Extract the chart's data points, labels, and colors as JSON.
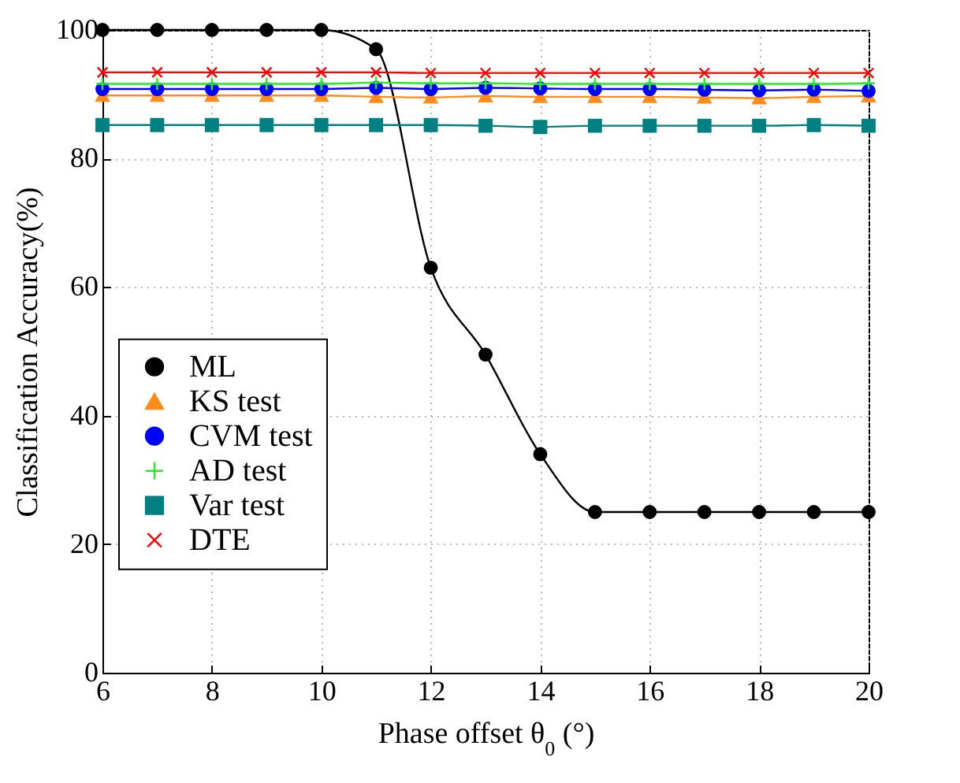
{
  "chart_data": {
    "type": "line",
    "xlabel": "Phase offset θ$_{0}$ (°)",
    "ylabel": "Classification Accuracy(%)",
    "x": [
      6,
      7,
      8,
      9,
      10,
      11,
      12,
      13,
      14,
      15,
      16,
      17,
      18,
      19,
      20
    ],
    "xlim": [
      6,
      20
    ],
    "xticks": [
      6,
      8,
      10,
      12,
      14,
      16,
      18,
      20
    ],
    "ylim": [
      0,
      100
    ],
    "yticks": [
      0,
      20,
      40,
      60,
      80,
      100
    ],
    "grid": true,
    "legend": "left",
    "series": [
      {
        "name": "ML",
        "color": "#000000",
        "marker": "circle",
        "values": [
          100,
          100,
          100,
          100,
          100,
          97,
          63,
          49.5,
          34,
          25,
          25,
          25,
          25,
          25,
          25
        ]
      },
      {
        "name": "KS test",
        "color": "#ff8c1a",
        "marker": "triangle",
        "values": [
          89.8,
          89.8,
          89.8,
          89.8,
          89.8,
          89.6,
          89.5,
          89.7,
          89.6,
          89.6,
          89.6,
          89.5,
          89.4,
          89.6,
          89.7
        ]
      },
      {
        "name": "CVM test",
        "color": "#0000ff",
        "marker": "circle",
        "values": [
          90.8,
          90.8,
          90.8,
          90.8,
          90.8,
          91,
          90.8,
          91,
          90.9,
          90.8,
          90.8,
          90.7,
          90.6,
          90.7,
          90.5
        ]
      },
      {
        "name": "AD test",
        "color": "#22ee22",
        "marker": "plus",
        "values": [
          91.6,
          91.6,
          91.6,
          91.6,
          91.6,
          91.8,
          91.7,
          91.7,
          91.6,
          91.6,
          91.6,
          91.6,
          91.6,
          91.6,
          91.7
        ]
      },
      {
        "name": "Var test",
        "color": "#008080",
        "marker": "square",
        "values": [
          85.2,
          85.2,
          85.2,
          85.2,
          85.2,
          85.2,
          85.2,
          85.1,
          84.9,
          85.1,
          85.1,
          85.1,
          85.1,
          85.2,
          85.1
        ]
      },
      {
        "name": "DTE",
        "color": "#ff0000",
        "marker": "cross",
        "values": [
          93.4,
          93.4,
          93.4,
          93.4,
          93.4,
          93.4,
          93.3,
          93.3,
          93.3,
          93.3,
          93.3,
          93.3,
          93.3,
          93.3,
          93.3
        ]
      }
    ]
  }
}
